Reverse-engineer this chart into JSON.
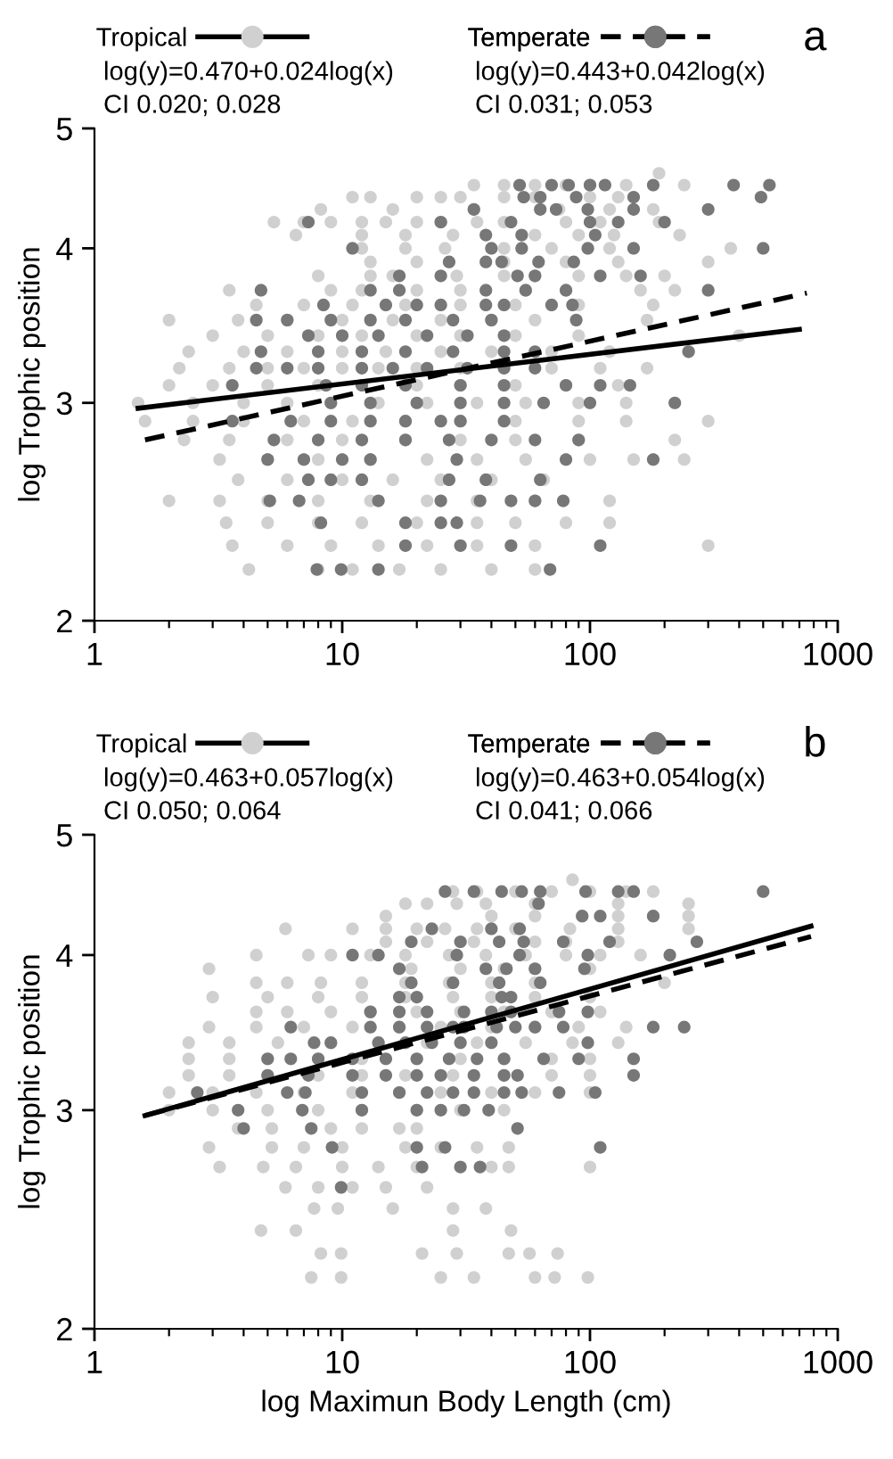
{
  "chart_data": [
    {
      "type": "scatter",
      "title": "a",
      "ylabel": "log Trophic position",
      "log": "xy",
      "legend": "top",
      "xlim": [
        1,
        1000
      ],
      "ylim": [
        2,
        5
      ],
      "xticks": [
        1,
        10,
        100,
        1000
      ],
      "yticks": [
        2,
        3,
        4,
        5
      ],
      "annotations": [
        "log(y)=0.470+0.024log(x)",
        "CI 0.020; 0.028",
        "log(y)=0.443+0.042log(x)",
        "CI 0.031; 0.053"
      ],
      "series": [
        {
          "name": "Tropical",
          "color": "#d0d0d0",
          "marker": "circle",
          "x": [
            190,
            34,
            45,
            60,
            80,
            100,
            140,
            240,
            11,
            13,
            20,
            25,
            30,
            45,
            60,
            100,
            130,
            8.2,
            16,
            34,
            75,
            120,
            180,
            5.3,
            7,
            9,
            12,
            15,
            20,
            25,
            35,
            45,
            80,
            110,
            190,
            6.5,
            12,
            18,
            28,
            60,
            90,
            125,
            230,
            12,
            18,
            26,
            45,
            70,
            120,
            370,
            13,
            20,
            45,
            80,
            130,
            300,
            8,
            13,
            16,
            29,
            45,
            60,
            90,
            140,
            200,
            3.5,
            9,
            12,
            20,
            30,
            55,
            80,
            160,
            220,
            4.5,
            7,
            11,
            18,
            30,
            50,
            90,
            180,
            2,
            3.8,
            6,
            10,
            16,
            25,
            40,
            60,
            170,
            3,
            5,
            8,
            12,
            20,
            30,
            50,
            90,
            400,
            2.4,
            4,
            6,
            10,
            15,
            25,
            40,
            70,
            120,
            250,
            2.2,
            3.5,
            5,
            7,
            10,
            14,
            20,
            30,
            45,
            70,
            110,
            170,
            2,
            3,
            5,
            8,
            20,
            30,
            50,
            80,
            130,
            1.5,
            2.5,
            4,
            6,
            9,
            14,
            22,
            35,
            55,
            90,
            140,
            1.6,
            2.5,
            4,
            7,
            11,
            18,
            30,
            50,
            90,
            140,
            300,
            2.3,
            3.5,
            6,
            10,
            18,
            30,
            50,
            90,
            220,
            3.2,
            5,
            8,
            13,
            22,
            35,
            55,
            100,
            150,
            240,
            3.8,
            6,
            10,
            16,
            25,
            40,
            65,
            2,
            3.2,
            5,
            8,
            13,
            22,
            35,
            60,
            120,
            3.4,
            5,
            8,
            12,
            20,
            35,
            50,
            80,
            120,
            3.6,
            6,
            9,
            14,
            22,
            35,
            60,
            300,
            4.2,
            8,
            11,
            17,
            25,
            40,
            60
          ],
          "values": [
            4.6,
            4.5,
            4.5,
            4.5,
            4.5,
            4.5,
            4.5,
            4.5,
            4.4,
            4.4,
            4.4,
            4.4,
            4.4,
            4.4,
            4.4,
            4.4,
            4.4,
            4.3,
            4.3,
            4.3,
            4.3,
            4.3,
            4.3,
            4.2,
            4.2,
            4.2,
            4.2,
            4.2,
            4.2,
            4.2,
            4.2,
            4.2,
            4.2,
            4.2,
            4.2,
            4.1,
            4.1,
            4.1,
            4.1,
            4.1,
            4.1,
            4.1,
            4.1,
            4,
            4,
            4,
            4,
            4,
            4,
            4,
            3.9,
            3.9,
            3.9,
            3.9,
            3.9,
            3.9,
            3.8,
            3.8,
            3.8,
            3.8,
            3.8,
            3.8,
            3.8,
            3.8,
            3.8,
            3.7,
            3.7,
            3.7,
            3.7,
            3.7,
            3.7,
            3.7,
            3.7,
            3.7,
            3.6,
            3.6,
            3.6,
            3.6,
            3.6,
            3.6,
            3.6,
            3.6,
            3.5,
            3.5,
            3.5,
            3.5,
            3.5,
            3.5,
            3.5,
            3.5,
            3.5,
            3.4,
            3.4,
            3.4,
            3.4,
            3.4,
            3.4,
            3.4,
            3.4,
            3.4,
            3.3,
            3.3,
            3.3,
            3.3,
            3.3,
            3.3,
            3.3,
            3.3,
            3.3,
            3.3,
            3.2,
            3.2,
            3.2,
            3.2,
            3.2,
            3.2,
            3.2,
            3.2,
            3.2,
            3.2,
            3.2,
            3.2,
            3.1,
            3.1,
            3.1,
            3.1,
            3.1,
            3.1,
            3.1,
            3.1,
            3.1,
            3,
            3,
            3,
            3,
            3,
            3,
            3,
            3,
            3,
            3,
            3,
            2.9,
            2.9,
            2.9,
            2.9,
            2.9,
            2.9,
            2.9,
            2.9,
            2.9,
            2.9,
            2.9,
            2.8,
            2.8,
            2.8,
            2.8,
            2.8,
            2.8,
            2.8,
            2.8,
            2.8,
            2.7,
            2.7,
            2.7,
            2.7,
            2.7,
            2.7,
            2.7,
            2.7,
            2.7,
            2.7,
            2.6,
            2.6,
            2.6,
            2.6,
            2.6,
            2.6,
            2.6,
            2.5,
            2.5,
            2.5,
            2.5,
            2.5,
            2.5,
            2.5,
            2.5,
            2.5,
            2.4,
            2.4,
            2.4,
            2.4,
            2.4,
            2.4,
            2.4,
            2.4,
            2.4,
            2.3,
            2.3,
            2.3,
            2.3,
            2.3,
            2.3,
            2.3,
            2.3,
            2.2,
            2.2,
            2.2,
            2.2,
            2.2,
            2.2,
            2.2
          ]
        },
        {
          "name": "Temperate",
          "color": "#777777",
          "marker": "circle",
          "x": [
            52,
            70,
            82,
            100,
            115,
            180,
            380,
            530,
            54,
            63,
            88,
            150,
            490,
            34,
            63,
            73,
            98,
            150,
            300,
            7.3,
            25,
            48,
            100,
            130,
            200,
            38,
            53,
            105,
            11,
            40,
            53,
            98,
            150,
            500,
            27,
            38,
            44,
            62,
            86,
            17,
            25,
            51,
            60,
            110,
            160,
            4.7,
            13,
            17,
            38,
            55,
            80,
            300,
            8.4,
            15,
            20,
            25,
            38,
            45,
            70,
            85,
            4.5,
            6,
            9,
            13,
            18,
            28,
            40,
            88,
            7.3,
            10,
            14,
            22,
            32,
            45,
            4.7,
            8,
            12,
            18,
            28,
            45,
            60,
            250,
            4.5,
            6,
            8,
            12,
            16,
            22,
            32,
            45,
            60,
            3.6,
            8.6,
            12,
            18,
            30,
            45,
            80,
            110,
            145,
            9,
            13,
            20,
            30,
            45,
            65,
            100,
            220,
            3.6,
            6.2,
            9,
            13,
            18,
            25,
            30,
            45,
            5.3,
            8,
            12,
            18,
            27,
            40,
            60,
            90,
            5,
            7,
            10,
            13,
            29,
            80,
            180,
            7.3,
            9,
            12,
            27,
            38,
            63,
            5.1,
            6.7,
            14,
            25,
            36,
            48,
            60,
            78,
            8.2,
            18,
            25,
            29,
            18,
            30,
            48,
            110,
            7.9,
            9.9,
            14,
            69
          ],
          "values": [
            4.5,
            4.5,
            4.5,
            4.5,
            4.5,
            4.5,
            4.5,
            4.5,
            4.4,
            4.4,
            4.4,
            4.4,
            4.4,
            4.3,
            4.3,
            4.3,
            4.3,
            4.3,
            4.3,
            4.2,
            4.2,
            4.2,
            4.2,
            4.2,
            4.2,
            4.1,
            4.1,
            4.1,
            4,
            4,
            4,
            4,
            4,
            4,
            3.9,
            3.9,
            3.9,
            3.9,
            3.9,
            3.8,
            3.8,
            3.8,
            3.8,
            3.8,
            3.8,
            3.7,
            3.7,
            3.7,
            3.7,
            3.7,
            3.7,
            3.7,
            3.6,
            3.6,
            3.6,
            3.6,
            3.6,
            3.6,
            3.6,
            3.6,
            3.5,
            3.5,
            3.5,
            3.5,
            3.5,
            3.5,
            3.5,
            3.5,
            3.4,
            3.4,
            3.4,
            3.4,
            3.4,
            3.4,
            3.3,
            3.3,
            3.3,
            3.3,
            3.3,
            3.3,
            3.3,
            3.3,
            3.2,
            3.2,
            3.2,
            3.2,
            3.2,
            3.2,
            3.2,
            3.2,
            3.2,
            3.1,
            3.1,
            3.1,
            3.1,
            3.1,
            3.1,
            3.1,
            3.1,
            3.1,
            3,
            3,
            3,
            3,
            3,
            3,
            3,
            3,
            2.9,
            2.9,
            2.9,
            2.9,
            2.9,
            2.9,
            2.9,
            2.9,
            2.8,
            2.8,
            2.8,
            2.8,
            2.8,
            2.8,
            2.8,
            2.8,
            2.7,
            2.7,
            2.7,
            2.7,
            2.7,
            2.7,
            2.7,
            2.6,
            2.6,
            2.6,
            2.6,
            2.6,
            2.6,
            2.5,
            2.5,
            2.5,
            2.5,
            2.5,
            2.5,
            2.5,
            2.5,
            2.4,
            2.4,
            2.4,
            2.4,
            2.3,
            2.3,
            2.3,
            2.3,
            2.2,
            2.2,
            2.2,
            2.2
          ]
        },
        {
          "type": "line",
          "color": "#000000",
          "line_style": "solid",
          "x": [
            1.5,
            700
          ],
          "values": [
            2.97,
            3.44
          ]
        },
        {
          "type": "line",
          "color": "#000000",
          "line_style": "dashed",
          "x": [
            1.6,
            750
          ],
          "values": [
            2.8,
            3.68
          ]
        }
      ]
    },
    {
      "type": "scatter",
      "title": "b",
      "xlabel": "log Maximun Body Length (cm)",
      "ylabel": "log Trophic position",
      "log": "xy",
      "legend": "top",
      "xlim": [
        1,
        1000
      ],
      "ylim": [
        2,
        5
      ],
      "xticks": [
        1,
        10,
        100,
        1000
      ],
      "yticks": [
        2,
        3,
        4,
        5
      ],
      "annotations": [
        "log(y)=0.463+0.057log(x)",
        "CI 0.050; 0.064",
        "log(y)=0.463+0.054log(x)",
        "CI 0.041; 0.066"
      ],
      "series": [
        {
          "name": "Tropical",
          "color": "#d0d0d0",
          "marker": "circle",
          "x": [
            85,
            28,
            35,
            50,
            70,
            100,
            140,
            180,
            18,
            22,
            29,
            38,
            60,
            130,
            250,
            15,
            40,
            60,
            93,
            130,
            180,
            250,
            5.9,
            11,
            15,
            20,
            26,
            35,
            50,
            83,
            130,
            250,
            15,
            22,
            34,
            60,
            80,
            130,
            4.5,
            7.3,
            9,
            13,
            18,
            27,
            38,
            55,
            80,
            110,
            160,
            2.9,
            19,
            30,
            45,
            60,
            100,
            4.5,
            6,
            8.2,
            12,
            18,
            27,
            40,
            60,
            200,
            3,
            5,
            8,
            12,
            18,
            28,
            40,
            60,
            100,
            4.5,
            6,
            9,
            13,
            20,
            30,
            45,
            70,
            110,
            2.9,
            4.5,
            7,
            11,
            17,
            25,
            40,
            60,
            90,
            140,
            2.4,
            3.5,
            5.5,
            9,
            14,
            22,
            35,
            55,
            85,
            130,
            2.4,
            3.5,
            5,
            8,
            12,
            20,
            30,
            45,
            70,
            100,
            2.4,
            3.5,
            5,
            8,
            12,
            18,
            28,
            45,
            70,
            100,
            2,
            3,
            4.5,
            7,
            11,
            17,
            25,
            40,
            60,
            100,
            2,
            3,
            5,
            8,
            12,
            20,
            30,
            45,
            3.8,
            5.2,
            9,
            12,
            17,
            20,
            2.9,
            5.2,
            7,
            10,
            18,
            25,
            35,
            47,
            3.2,
            4.8,
            6.5,
            10,
            14,
            20,
            40,
            47,
            100,
            5.9,
            8,
            11,
            15,
            22,
            7.7,
            9.6,
            16,
            28,
            38,
            4.7,
            6.5,
            28,
            48,
            8.2,
            9.9,
            21,
            29,
            47,
            57,
            74,
            7.5,
            9.9,
            25,
            34,
            60,
            72,
            98
          ],
          "values": [
            4.6,
            4.5,
            4.5,
            4.5,
            4.5,
            4.5,
            4.5,
            4.5,
            4.4,
            4.4,
            4.4,
            4.4,
            4.4,
            4.4,
            4.4,
            4.3,
            4.3,
            4.3,
            4.3,
            4.3,
            4.3,
            4.3,
            4.2,
            4.2,
            4.2,
            4.2,
            4.2,
            4.2,
            4.2,
            4.2,
            4.2,
            4.2,
            4.1,
            4.1,
            4.1,
            4.1,
            4.1,
            4.1,
            4,
            4,
            4,
            4,
            4,
            4,
            4,
            4,
            4,
            4,
            4,
            3.9,
            3.9,
            3.9,
            3.9,
            3.9,
            3.9,
            3.8,
            3.8,
            3.8,
            3.8,
            3.8,
            3.8,
            3.8,
            3.8,
            3.8,
            3.7,
            3.7,
            3.7,
            3.7,
            3.7,
            3.7,
            3.7,
            3.7,
            3.7,
            3.6,
            3.6,
            3.6,
            3.6,
            3.6,
            3.6,
            3.6,
            3.6,
            3.6,
            3.5,
            3.5,
            3.5,
            3.5,
            3.5,
            3.5,
            3.5,
            3.5,
            3.5,
            3.5,
            3.4,
            3.4,
            3.4,
            3.4,
            3.4,
            3.4,
            3.4,
            3.4,
            3.4,
            3.4,
            3.3,
            3.3,
            3.3,
            3.3,
            3.3,
            3.3,
            3.3,
            3.3,
            3.3,
            3.3,
            3.2,
            3.2,
            3.2,
            3.2,
            3.2,
            3.2,
            3.2,
            3.2,
            3.2,
            3.2,
            3.1,
            3.1,
            3.1,
            3.1,
            3.1,
            3.1,
            3.1,
            3.1,
            3.1,
            3.1,
            3,
            3,
            3,
            3,
            3,
            3,
            3,
            3,
            2.9,
            2.9,
            2.9,
            2.9,
            2.9,
            2.9,
            2.8,
            2.8,
            2.8,
            2.8,
            2.8,
            2.8,
            2.8,
            2.8,
            2.7,
            2.7,
            2.7,
            2.7,
            2.7,
            2.7,
            2.7,
            2.7,
            2.7,
            2.6,
            2.6,
            2.6,
            2.6,
            2.6,
            2.5,
            2.5,
            2.5,
            2.5,
            2.5,
            2.4,
            2.4,
            2.4,
            2.4,
            2.3,
            2.3,
            2.3,
            2.3,
            2.3,
            2.3,
            2.3,
            2.2,
            2.2,
            2.2,
            2.2,
            2.2,
            2.2,
            2.2
          ]
        },
        {
          "name": "Temperate",
          "color": "#777777",
          "marker": "circle",
          "x": [
            26,
            34,
            44,
            53,
            63,
            96,
            130,
            150,
            500,
            62,
            93,
            110,
            180,
            23,
            40,
            52,
            19,
            30,
            43,
            54,
            78,
            120,
            270,
            11,
            14,
            29,
            52,
            98,
            210,
            17,
            38,
            46,
            60,
            95,
            19,
            28,
            43,
            63,
            17,
            20,
            44,
            48,
            13,
            17,
            22,
            31,
            40,
            48,
            75,
            98,
            6.2,
            13,
            17,
            22,
            28,
            31,
            42,
            50,
            60,
            78,
            180,
            240,
            7.7,
            9,
            14,
            18,
            23,
            30,
            40,
            98,
            5,
            6.2,
            8,
            11,
            15,
            20,
            27,
            35,
            45,
            65,
            90,
            150,
            5,
            7.3,
            11,
            15,
            20,
            25,
            34,
            45,
            51,
            150,
            2.6,
            6,
            7.1,
            12,
            17,
            22,
            28,
            34,
            45,
            53,
            75,
            105,
            3.8,
            6.9,
            12,
            20,
            25,
            31,
            39,
            4,
            7.5,
            51,
            9.1,
            20,
            26,
            110,
            21,
            30,
            36,
            9.9
          ],
          "values": [
            4.5,
            4.5,
            4.5,
            4.5,
            4.5,
            4.5,
            4.5,
            4.5,
            4.5,
            4.4,
            4.3,
            4.3,
            4.3,
            4.2,
            4.2,
            4.2,
            4.1,
            4.1,
            4.1,
            4.1,
            4.1,
            4.1,
            4.1,
            4,
            4,
            4,
            4,
            4,
            4,
            3.9,
            3.9,
            3.9,
            3.9,
            3.9,
            3.8,
            3.8,
            3.8,
            3.8,
            3.7,
            3.7,
            3.7,
            3.7,
            3.6,
            3.6,
            3.6,
            3.6,
            3.6,
            3.6,
            3.6,
            3.6,
            3.5,
            3.5,
            3.5,
            3.5,
            3.5,
            3.5,
            3.5,
            3.5,
            3.5,
            3.5,
            3.5,
            3.5,
            3.4,
            3.4,
            3.4,
            3.4,
            3.4,
            3.4,
            3.4,
            3.4,
            3.3,
            3.3,
            3.3,
            3.3,
            3.3,
            3.3,
            3.3,
            3.3,
            3.3,
            3.3,
            3.3,
            3.3,
            3.2,
            3.2,
            3.2,
            3.2,
            3.2,
            3.2,
            3.2,
            3.2,
            3.2,
            3.2,
            3.1,
            3.1,
            3.1,
            3.1,
            3.1,
            3.1,
            3.1,
            3.1,
            3.1,
            3.1,
            3.1,
            3.1,
            3,
            3,
            3,
            3,
            3,
            3,
            3,
            2.9,
            2.9,
            2.9,
            2.8,
            2.8,
            2.8,
            2.8,
            2.7,
            2.7,
            2.7,
            2.6
          ]
        },
        {
          "type": "line",
          "color": "#000000",
          "line_style": "solid",
          "x": [
            1.6,
            780
          ],
          "values": [
            2.97,
            4.22
          ]
        },
        {
          "type": "line",
          "color": "#000000",
          "line_style": "dashed",
          "x": [
            1.6,
            780
          ],
          "values": [
            2.97,
            4.14
          ]
        }
      ]
    }
  ]
}
